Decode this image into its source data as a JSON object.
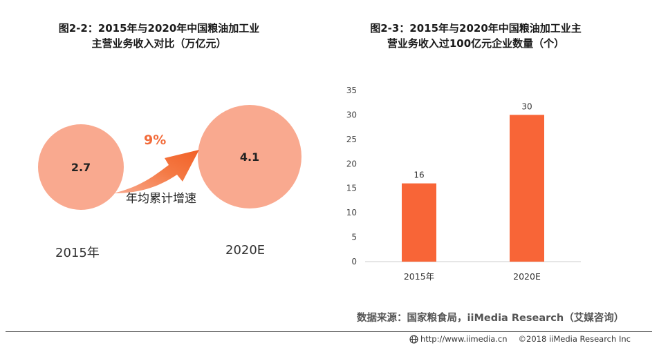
{
  "left_chart": {
    "title_line1": "图2-2：2015年与2020年中国粮油加工业",
    "title_line2": "主营业务收入对比（万亿元）",
    "bubble_2015_value": "2.7",
    "bubble_2020_value": "4.1",
    "label_2015": "2015年",
    "label_2020": "2020E",
    "growth_rate": "9%",
    "growth_label": "年均累计增速"
  },
  "right_chart": {
    "title_line1": "图2-3：2015年与2020年中国粮油加工业主",
    "title_line2": "营业务收入过100亿元企业数量（个）"
  },
  "chart_data": [
    {
      "type": "bubble",
      "title": "图2-2：2015年与2020年中国粮油加工业主营业务收入对比（万亿元）",
      "categories": [
        "2015年",
        "2020E"
      ],
      "values": [
        2.7,
        4.1
      ],
      "annotation": "9% 年均累计增速"
    },
    {
      "type": "bar",
      "title": "图2-3：2015年与2020年中国粮油加工业主营业务收入过100亿元企业数量（个）",
      "categories": [
        "2015年",
        "2020E"
      ],
      "values": [
        16,
        30
      ],
      "ylim": [
        0,
        35
      ],
      "yticks": [
        0,
        5,
        10,
        15,
        20,
        25,
        30,
        35
      ],
      "color": "#f86537",
      "grid": false
    }
  ],
  "source": "数据来源：国家粮食局，iiMedia Research（艾媒咨询）",
  "footer": {
    "url": "http://www.iimedia.cn",
    "copyright": "©2018  iiMedia Research  Inc"
  }
}
